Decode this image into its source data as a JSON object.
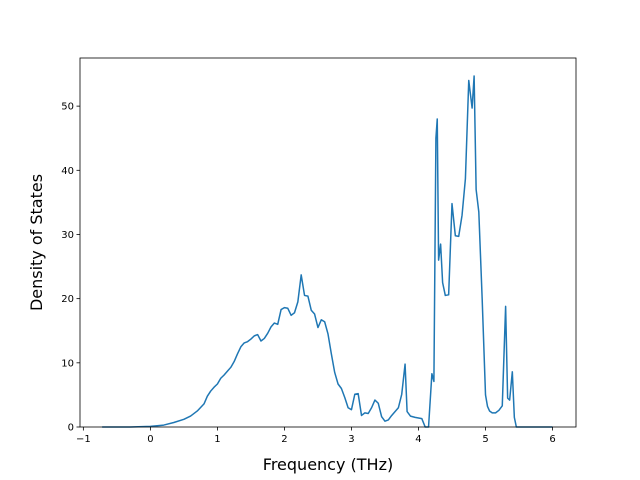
{
  "chart_data": {
    "type": "line",
    "title": "",
    "xlabel": "Frequency (THz)",
    "ylabel": "Density of States",
    "xlim": [
      -1.05,
      6.35
    ],
    "ylim": [
      0,
      57.5
    ],
    "xticks": [
      -1,
      0,
      1,
      2,
      3,
      4,
      5,
      6
    ],
    "yticks": [
      0,
      10,
      20,
      30,
      40,
      50
    ],
    "grid": false,
    "legend": "none",
    "line_color": "#1f77b4",
    "series": [
      {
        "x": [
          -0.72,
          -0.3,
          0.0,
          0.2,
          0.35,
          0.5,
          0.6,
          0.7,
          0.8,
          0.85,
          0.9,
          0.95,
          1.0,
          1.05,
          1.1,
          1.15,
          1.2,
          1.25,
          1.3,
          1.35,
          1.4,
          1.45,
          1.5,
          1.55,
          1.6,
          1.65,
          1.7,
          1.75,
          1.8,
          1.85,
          1.9,
          1.95,
          2.0,
          2.05,
          2.1,
          2.15,
          2.2,
          2.25,
          2.3,
          2.35,
          2.4,
          2.45,
          2.5,
          2.55,
          2.6,
          2.65,
          2.7,
          2.75,
          2.8,
          2.85,
          2.9,
          2.95,
          3.0,
          3.05,
          3.1,
          3.15,
          3.2,
          3.25,
          3.3,
          3.35,
          3.4,
          3.45,
          3.5,
          3.55,
          3.6,
          3.65,
          3.7,
          3.75,
          3.8,
          3.83,
          3.88,
          3.95,
          4.05,
          4.1,
          4.15,
          4.2,
          4.23,
          4.26,
          4.28,
          4.3,
          4.33,
          4.36,
          4.4,
          4.45,
          4.5,
          4.55,
          4.6,
          4.65,
          4.7,
          4.75,
          4.8,
          4.83,
          4.86,
          4.9,
          4.95,
          5.0,
          5.03,
          5.06,
          5.1,
          5.15,
          5.2,
          5.25,
          5.3,
          5.33,
          5.36,
          5.4,
          5.43,
          5.46,
          5.5,
          6.0
        ],
        "y": [
          0,
          0,
          0.1,
          0.3,
          0.7,
          1.2,
          1.7,
          2.5,
          3.6,
          4.8,
          5.6,
          6.2,
          6.7,
          7.6,
          8.1,
          8.7,
          9.3,
          10.2,
          11.4,
          12.5,
          13.1,
          13.3,
          13.7,
          14.2,
          14.4,
          13.4,
          13.8,
          14.6,
          15.6,
          16.2,
          16.0,
          18.3,
          18.6,
          18.5,
          17.4,
          17.8,
          19.5,
          23.7,
          20.5,
          20.4,
          18.2,
          17.6,
          15.5,
          16.7,
          16.4,
          14.5,
          11.4,
          8.5,
          6.7,
          6.0,
          4.6,
          3.0,
          2.7,
          5.1,
          5.2,
          1.8,
          2.2,
          2.1,
          3.0,
          4.2,
          3.7,
          1.6,
          0.9,
          1.1,
          1.8,
          2.4,
          3.0,
          5.1,
          9.8,
          2.4,
          1.7,
          1.5,
          1.3,
          0.0,
          0.0,
          8.3,
          7.1,
          45.0,
          48.0,
          26.0,
          28.5,
          22.5,
          20.5,
          20.6,
          34.8,
          29.8,
          29.7,
          33.0,
          38.7,
          54.0,
          49.7,
          54.7,
          37.0,
          33.5,
          20.0,
          5.0,
          3.2,
          2.5,
          2.2,
          2.2,
          2.6,
          3.3,
          18.8,
          4.5,
          4.2,
          8.6,
          1.5,
          0.0,
          0.0,
          0.0
        ]
      }
    ]
  }
}
